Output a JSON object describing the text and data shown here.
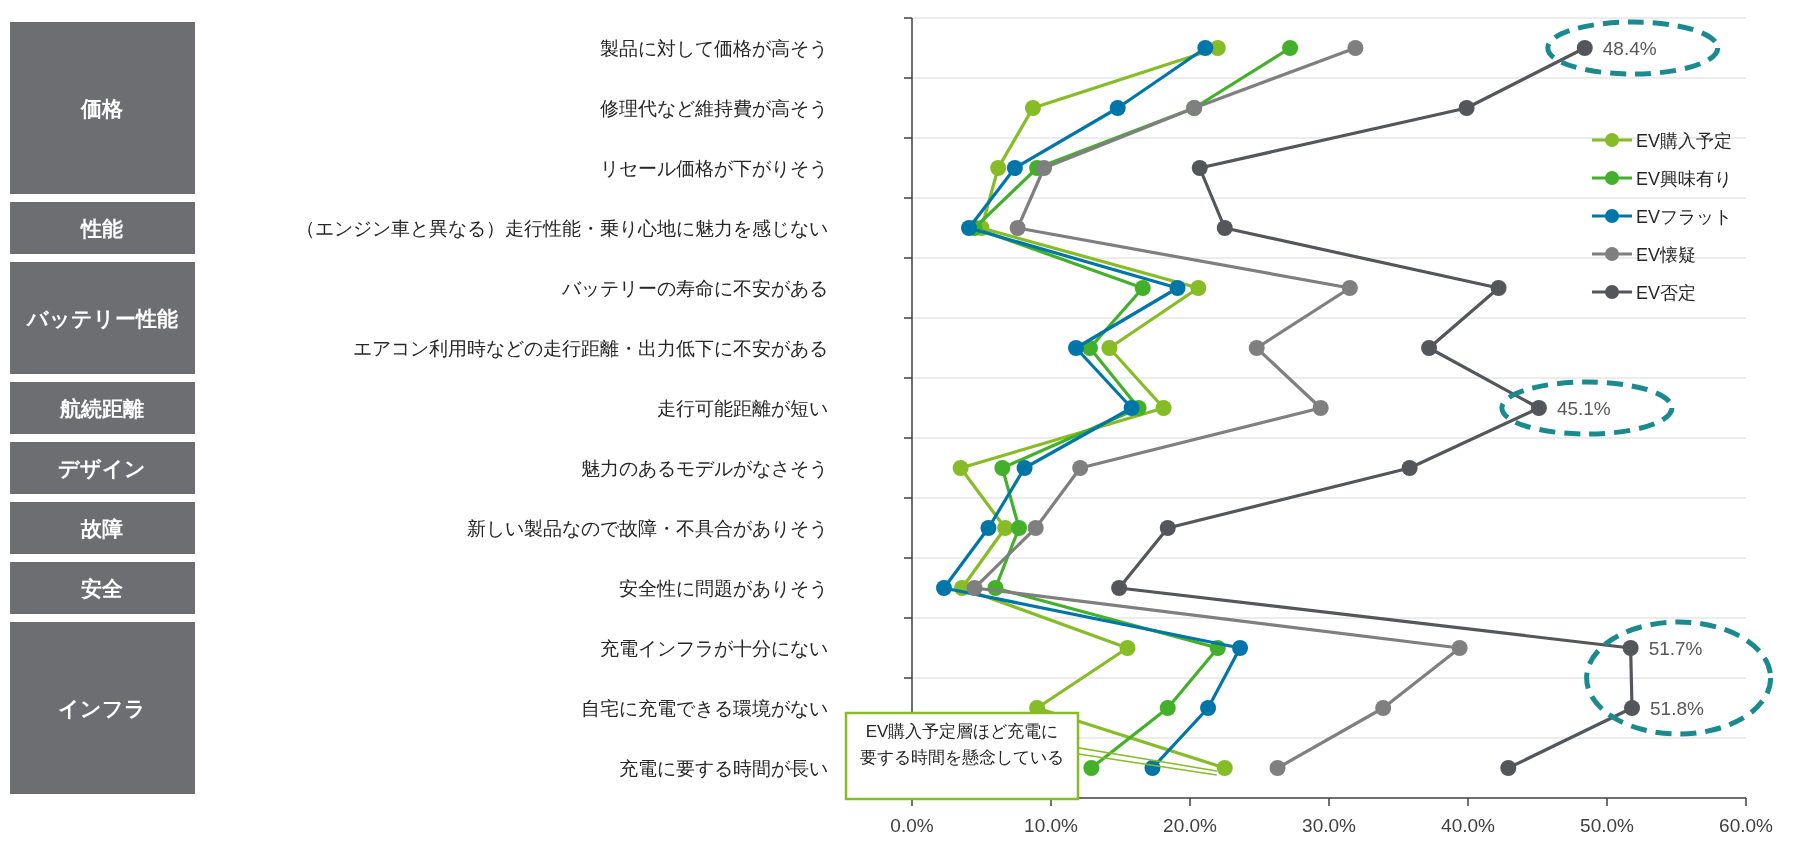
{
  "chart_data": {
    "type": "line",
    "orientation": "horizontal",
    "categories": [
      "製品に対して価格が高そう",
      "修理代など維持費が高そう",
      "リセール価格が下がりそう",
      "（エンジン車と異なる）走行性能・乗り心地に魅力を感じない",
      "バッテリーの寿命に不安がある",
      "エアコン利用時などの走行距離・出力低下に不安がある",
      "走行可能距離が短い",
      "魅力のあるモデルがなさそう",
      "新しい製品なので故障・不具合がありそう",
      "安全性に問題がありそう",
      "充電インフラが十分にない",
      "自宅に充電できる環境がない",
      "充電に要する時間が長い"
    ],
    "series": [
      {
        "name": "EV購入予定",
        "color": "#86bc25",
        "values": [
          22.0,
          8.7,
          6.2,
          5.0,
          20.6,
          14.2,
          18.1,
          3.5,
          6.7,
          3.6,
          15.5,
          9.0,
          22.5
        ]
      },
      {
        "name": "EV興味有り",
        "color": "#43b02a",
        "values": [
          27.2,
          20.3,
          9.0,
          4.5,
          16.6,
          12.8,
          16.3,
          6.5,
          7.7,
          6.0,
          22.0,
          18.4,
          12.9
        ]
      },
      {
        "name": "EVフラット",
        "color": "#0076a8",
        "values": [
          21.1,
          14.8,
          7.4,
          4.1,
          19.1,
          11.8,
          15.8,
          8.1,
          5.5,
          2.3,
          23.6,
          21.3,
          17.3
        ]
      },
      {
        "name": "EV懐疑",
        "color": "#7f7f7f",
        "values": [
          31.9,
          20.3,
          9.5,
          7.6,
          31.5,
          24.8,
          29.4,
          12.1,
          8.9,
          4.5,
          39.4,
          33.9,
          26.3
        ]
      },
      {
        "name": "EV否定",
        "color": "#53565a",
        "values": [
          48.4,
          39.9,
          20.7,
          22.5,
          42.2,
          37.2,
          45.1,
          35.8,
          18.4,
          14.9,
          51.7,
          51.8,
          42.9
        ],
        "value_labels": [
          "48.4%",
          null,
          null,
          null,
          null,
          null,
          "45.1%",
          null,
          null,
          null,
          "51.7%",
          "51.8%",
          null
        ]
      }
    ],
    "xlim": [
      0,
      60
    ],
    "xticks": [
      {
        "value": 0,
        "label": "0.0%"
      },
      {
        "value": 10,
        "label": "10.0%"
      },
      {
        "value": 20,
        "label": "20.0%"
      },
      {
        "value": 30,
        "label": "30.0%"
      },
      {
        "value": 40,
        "label": "40.0%"
      },
      {
        "value": 50,
        "label": "50.0%"
      },
      {
        "value": 60,
        "label": "60.0%"
      }
    ],
    "annotations": [
      "価格",
      "性能",
      "バッテリー性能",
      "航続距離",
      "デザイン",
      "故障",
      "安全",
      "インフラ",
      {
        "text": "EV購入予定層ほど充電に要する時間を懸念している",
        "x": 22.5,
        "y": "充電に要する時間が長い"
      }
    ],
    "grid": "y",
    "legend": "right",
    "marker": "circle",
    "line_style": "solid"
  }
}
